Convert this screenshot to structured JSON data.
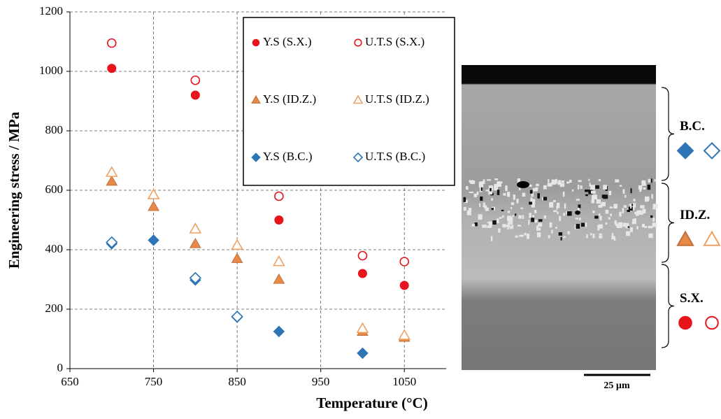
{
  "chart_data": {
    "type": "scatter",
    "xlabel": "Temperature (°C)",
    "ylabel": "Engineering stress / MPa",
    "xlim": [
      650,
      1100
    ],
    "xticks": [
      650,
      750,
      850,
      950,
      1050
    ],
    "ylim": [
      0,
      1200
    ],
    "yticks": [
      0,
      200,
      400,
      600,
      800,
      1000,
      1200
    ],
    "grid": true,
    "legend": "upper right",
    "series": [
      {
        "name": "Y.S (S.X.)",
        "color": "#e8141c",
        "marker": "circle",
        "filled": true,
        "x": [
          700,
          800,
          900,
          1000,
          1050
        ],
        "values": [
          1010,
          920,
          500,
          320,
          280
        ]
      },
      {
        "name": "U.T.S (S.X.)",
        "color": "#e8141c",
        "marker": "circle",
        "filled": false,
        "x": [
          700,
          800,
          900,
          1000,
          1050
        ],
        "values": [
          1095,
          970,
          580,
          380,
          360
        ]
      },
      {
        "name": "Y.S (ID.Z.)",
        "color": "#e8894a",
        "marker": "triangle",
        "filled": true,
        "x": [
          700,
          750,
          800,
          850,
          900,
          1000,
          1050
        ],
        "values": [
          630,
          545,
          420,
          370,
          300,
          125,
          105
        ]
      },
      {
        "name": "U.T.S (ID.Z.)",
        "color": "#f0a060",
        "marker": "triangle",
        "filled": false,
        "x": [
          700,
          750,
          800,
          850,
          900,
          1000,
          1050
        ],
        "values": [
          660,
          585,
          470,
          415,
          360,
          135,
          112
        ]
      },
      {
        "name": "Y.S (B.C.)",
        "color": "#2e75b6",
        "marker": "diamond",
        "filled": true,
        "x": [
          700,
          750,
          800,
          850,
          900,
          1000
        ],
        "values": [
          420,
          432,
          298,
          173,
          125,
          52
        ]
      },
      {
        "name": "U.T.S (B.C.)",
        "color": "#2e75b6",
        "marker": "diamond",
        "filled": false,
        "x": [
          700,
          800,
          850
        ],
        "values": [
          425,
          305,
          175
        ]
      }
    ]
  },
  "image_panel": {
    "scale_bar": "25 µm",
    "regions": [
      "B.C.",
      "ID.Z.",
      "S.X."
    ]
  }
}
